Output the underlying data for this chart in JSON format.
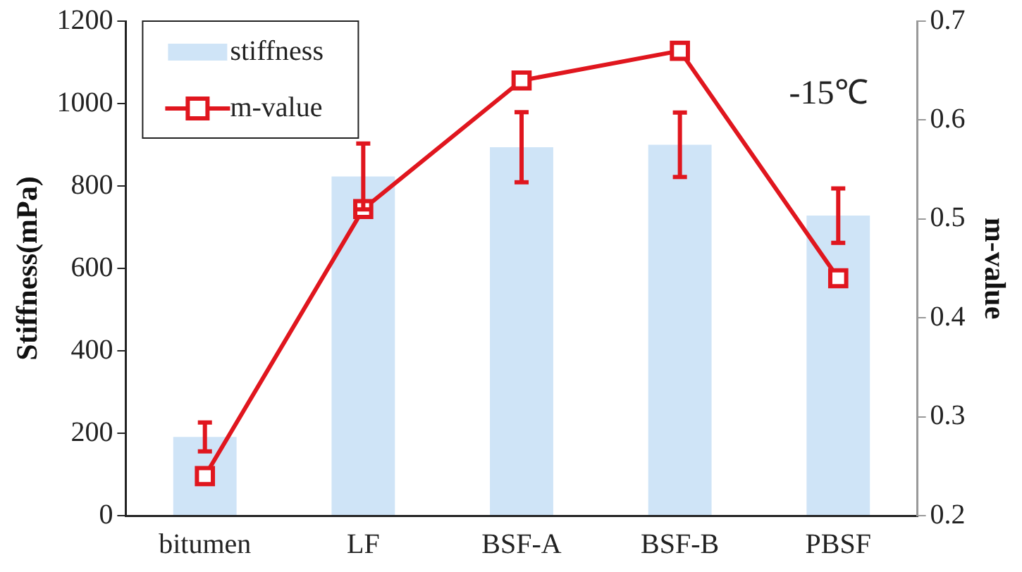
{
  "chart_data": {
    "type": "bar",
    "categories": [
      "bitumen",
      "LF",
      "BSF-A",
      "BSF-B",
      "PBSF"
    ],
    "series": [
      {
        "name": "stiffness",
        "color": "#cfe4f7",
        "values": [
          191,
          823,
          894,
          900,
          728
        ],
        "errors": [
          35,
          80,
          85,
          78,
          66
        ]
      },
      {
        "name": "m-value",
        "type": "line",
        "axis": "y2",
        "color": "#e0161e",
        "values": [
          0.24,
          0.51,
          0.64,
          0.67,
          0.44
        ],
        "marker": "square"
      }
    ],
    "ylabel": "Stiffness(mPa)",
    "y2label": "m-value",
    "ylim": [
      0,
      1200
    ],
    "yticks": [
      0,
      200,
      400,
      600,
      800,
      1000,
      1200
    ],
    "y2lim": [
      0.2,
      0.7
    ],
    "y2ticks": [
      0.2,
      0.3,
      0.4,
      0.5,
      0.6,
      0.7
    ],
    "annotations": [
      "-15℃"
    ],
    "legend": "top left",
    "grid": false
  }
}
